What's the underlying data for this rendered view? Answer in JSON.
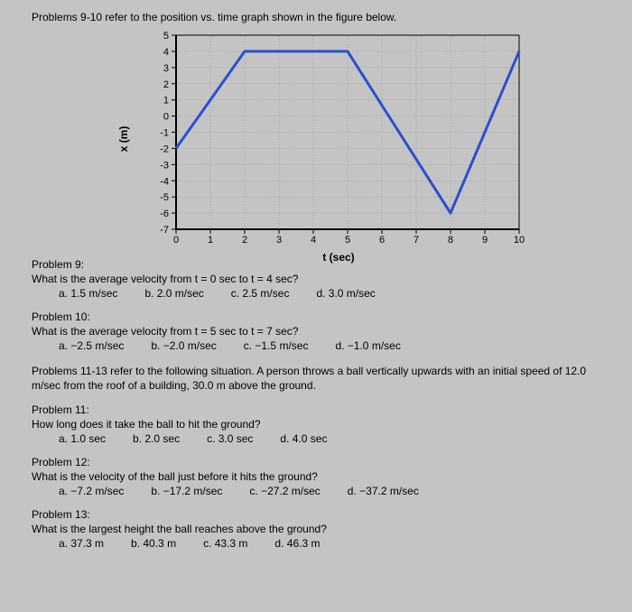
{
  "header": {
    "instruction": "Problems 9-10 refer to the position vs. time graph shown in the figure below."
  },
  "chart": {
    "type": "line",
    "xlabel": "t (sec)",
    "ylabel": "x (m)",
    "xlim": [
      0,
      10
    ],
    "ylim": [
      -7,
      5
    ],
    "xticks": [
      0,
      1,
      2,
      3,
      4,
      5,
      6,
      7,
      8,
      9,
      10
    ],
    "yticks": [
      -7,
      -6,
      -5,
      -4,
      -3,
      -2,
      -1,
      0,
      1,
      2,
      3,
      4,
      5
    ],
    "grid_color": "#888888",
    "axis_color": "#000000",
    "background_color": "rgba(255,255,255,0)",
    "line_color": "#2a4fd0",
    "line_width": 3,
    "axis_width": 2,
    "tick_fontsize": 11,
    "label_fontsize": 12,
    "points": [
      {
        "x": 0,
        "y": -2
      },
      {
        "x": 2,
        "y": 4
      },
      {
        "x": 5,
        "y": 4
      },
      {
        "x": 8,
        "y": -6
      },
      {
        "x": 10,
        "y": 4
      }
    ]
  },
  "problems": [
    {
      "title": "Problem 9:",
      "question": "What is the average velocity from t = 0 sec to t = 4 sec?",
      "options": [
        {
          "key": "a.",
          "val": "1.5 m/sec"
        },
        {
          "key": "b.",
          "val": "2.0 m/sec"
        },
        {
          "key": "c.",
          "val": "2.5 m/sec"
        },
        {
          "key": "d.",
          "val": "3.0 m/sec"
        }
      ]
    },
    {
      "title": "Problem 10:",
      "question": "What is the average velocity from t = 5 sec to t = 7 sec?",
      "options": [
        {
          "key": "a.",
          "val": "−2.5 m/sec"
        },
        {
          "key": "b.",
          "val": "−2.0 m/sec"
        },
        {
          "key": "c.",
          "val": "−1.5 m/sec"
        },
        {
          "key": "d.",
          "val": "−1.0 m/sec"
        }
      ]
    }
  ],
  "context": "Problems 11-13 refer to the following situation. A person throws a ball vertically upwards with an initial speed of 12.0 m/sec from the roof of a building, 30.0 m above the ground.",
  "problems2": [
    {
      "title": "Problem 11:",
      "question": "How long does it take the ball to hit the ground?",
      "options": [
        {
          "key": "a.",
          "val": "1.0 sec"
        },
        {
          "key": "b.",
          "val": "2.0 sec"
        },
        {
          "key": "c.",
          "val": "3.0 sec"
        },
        {
          "key": "d.",
          "val": "4.0 sec"
        }
      ]
    },
    {
      "title": "Problem 12:",
      "question": "What is the velocity of the ball just before it hits the ground?",
      "options": [
        {
          "key": "a.",
          "val": "−7.2 m/sec"
        },
        {
          "key": "b.",
          "val": "−17.2 m/sec"
        },
        {
          "key": "c.",
          "val": "−27.2 m/sec"
        },
        {
          "key": "d.",
          "val": "−37.2 m/sec"
        }
      ]
    },
    {
      "title": "Problem 13:",
      "question": "What is the largest height the ball reaches above the ground?",
      "options": [
        {
          "key": "a.",
          "val": "37.3 m"
        },
        {
          "key": "b.",
          "val": "40.3 m"
        },
        {
          "key": "c.",
          "val": "43.3 m"
        },
        {
          "key": "d.",
          "val": "46.3 m"
        }
      ]
    }
  ]
}
